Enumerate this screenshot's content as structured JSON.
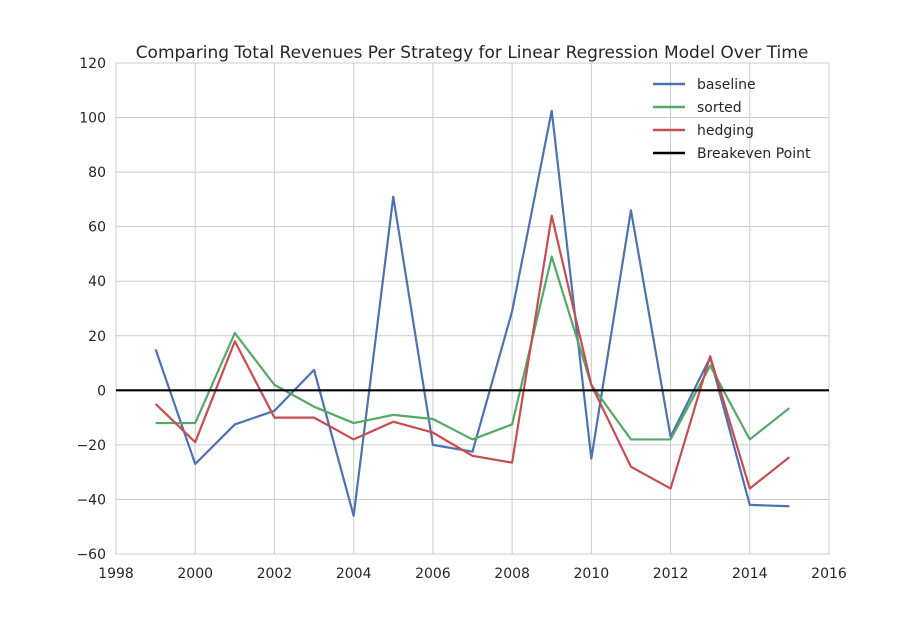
{
  "chart_data": {
    "type": "line",
    "title": "Comparing Total Revenues Per Strategy for Linear Regression Model Over Time",
    "xlabel": "",
    "ylabel": "",
    "xlim": [
      1998,
      2016
    ],
    "ylim": [
      -60,
      120
    ],
    "xticks": [
      1998,
      2000,
      2002,
      2004,
      2006,
      2008,
      2010,
      2012,
      2014,
      2016
    ],
    "yticks": [
      -60,
      -40,
      -20,
      0,
      20,
      40,
      60,
      80,
      100,
      120
    ],
    "grid": true,
    "legend_position": "top-right",
    "x": [
      1999,
      2000,
      2001,
      2002,
      2003,
      2004,
      2005,
      2006,
      2007,
      2008,
      2009,
      2010,
      2011,
      2012,
      2013,
      2014,
      2015
    ],
    "series": [
      {
        "name": "baseline",
        "color": "#4c72b0",
        "values": [
          15,
          -27,
          -12.5,
          -7.5,
          7.5,
          -46,
          71,
          -20,
          -22.5,
          29,
          102.5,
          -25,
          66,
          -17,
          12,
          -42,
          -42.5
        ]
      },
      {
        "name": "sorted",
        "color": "#55a868",
        "values": [
          -12,
          -12,
          21,
          2,
          -6,
          -12,
          -9,
          -10.5,
          -18,
          -12.5,
          49,
          2,
          -18,
          -18,
          9,
          -18,
          -6.5
        ]
      },
      {
        "name": "hedging",
        "color": "#c44e52",
        "values": [
          -5,
          -19,
          18,
          -10,
          -10,
          -18,
          -11.5,
          -15.5,
          -24,
          -26.5,
          64,
          2,
          -28,
          -36,
          12.5,
          -36,
          -24.5
        ]
      },
      {
        "name": "Breakeven Point",
        "color": "#000000",
        "constant": 0
      }
    ]
  }
}
